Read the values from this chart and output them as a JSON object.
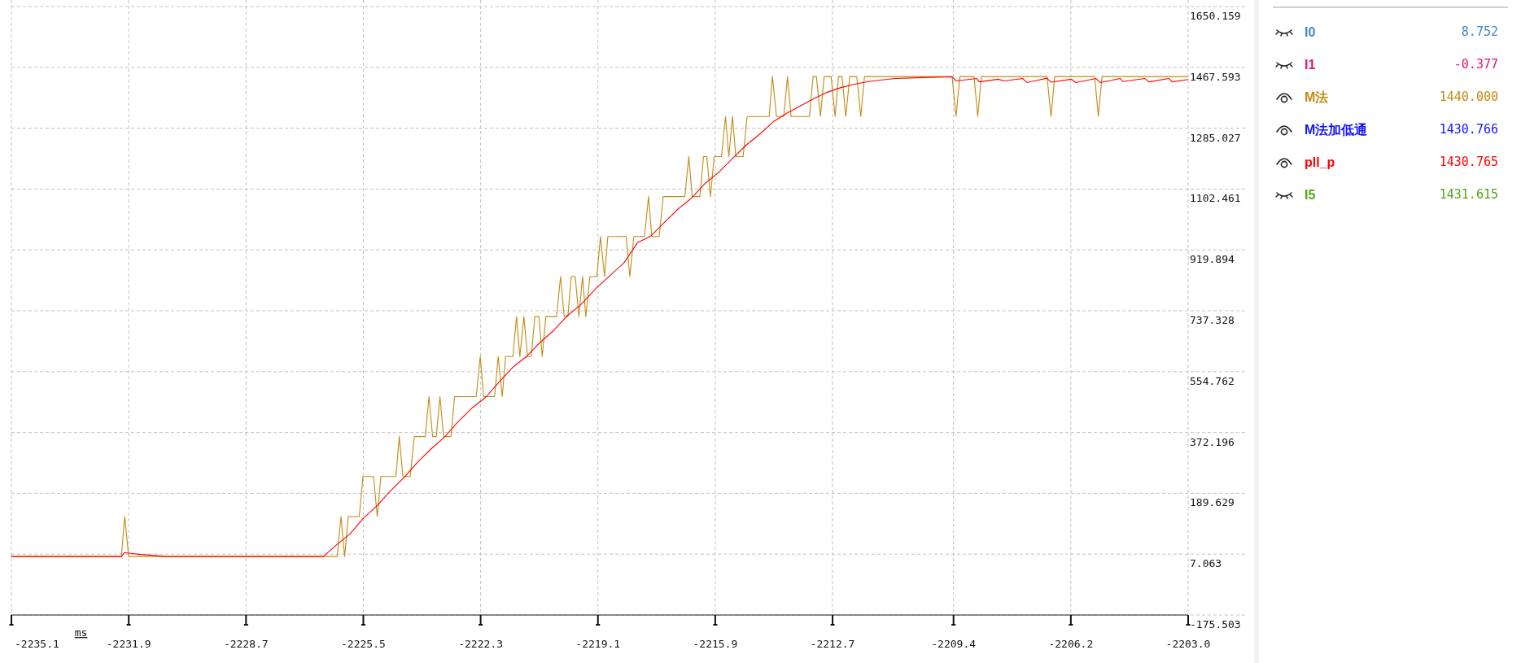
{
  "chart_data": [
    {
      "type": "line",
      "xlabel": "ms",
      "xlim": [
        -2235.1,
        -2203.0
      ],
      "ylim": [
        -175.503,
        1650.159
      ],
      "xticks": [
        {
          "value": -2235.1,
          "label": "-2235.1"
        },
        {
          "value": -2231.9,
          "label": "-2231.9"
        },
        {
          "value": -2228.7,
          "label": "-2228.7"
        },
        {
          "value": -2225.5,
          "label": "-2225.5"
        },
        {
          "value": -2222.3,
          "label": "-2222.3"
        },
        {
          "value": -2219.1,
          "label": "-2219.1"
        },
        {
          "value": -2215.9,
          "label": "-2215.9"
        },
        {
          "value": -2212.7,
          "label": "-2212.7"
        },
        {
          "value": -2209.4,
          "label": "-2209.4"
        },
        {
          "value": -2206.2,
          "label": "-2206.2"
        },
        {
          "value": -2203.0,
          "label": "-2203.0"
        }
      ],
      "yticks": [
        1650.159,
        1467.593,
        1285.027,
        1102.461,
        919.894,
        737.328,
        554.762,
        372.196,
        189.629,
        7.063,
        -175.503
      ],
      "grid": true,
      "series": [
        {
          "color": "#c48a10",
          "x": [
            -2235.1,
            -2232.1,
            -2232.01,
            -2231.9,
            -2226.21,
            -2226.11,
            -2226.01,
            -2225.91,
            -2225.61,
            -2225.51,
            -2225.22,
            -2225.12,
            -2225.02,
            -2224.61,
            -2224.52,
            -2224.42,
            -2224.22,
            -2224.11,
            -2223.81,
            -2223.71,
            -2223.61,
            -2223.51,
            -2223.41,
            -2223.31,
            -2223.11,
            -2223.01,
            -2222.42,
            -2222.31,
            -2222.22,
            -2221.92,
            -2221.82,
            -2221.71,
            -2221.62,
            -2221.42,
            -2221.32,
            -2221.23,
            -2221.12,
            -2221.02,
            -2220.92,
            -2220.82,
            -2220.71,
            -2220.62,
            -2220.52,
            -2220.23,
            -2220.12,
            -2220.02,
            -2219.92,
            -2219.83,
            -2219.72,
            -2219.62,
            -2219.52,
            -2219.43,
            -2219.32,
            -2219.13,
            -2219.03,
            -2218.92,
            -2218.83,
            -2218.33,
            -2218.23,
            -2218.12,
            -2217.83,
            -2217.72,
            -2217.63,
            -2217.43,
            -2217.32,
            -2216.73,
            -2216.62,
            -2216.53,
            -2216.32,
            -2216.22,
            -2216.13,
            -2216.03,
            -2215.93,
            -2215.73,
            -2215.62,
            -2215.53,
            -2215.43,
            -2215.34,
            -2215.14,
            -2215.03,
            -2214.43,
            -2214.34,
            -2214.23,
            -2214.03,
            -2213.93,
            -2213.83,
            -2213.33,
            -2213.23,
            -2213.14,
            -2213.03,
            -2212.93,
            -2212.74,
            -2212.63,
            -2212.54,
            -2212.44,
            -2212.34,
            -2212.23,
            -2212.04,
            -2211.93,
            -2211.83,
            -2209.44,
            -2209.33,
            -2209.23,
            -2208.84,
            -2208.74,
            -2208.64,
            -2206.85,
            -2206.74,
            -2206.64,
            -2205.55,
            -2205.45,
            -2205.35,
            -2203.0
          ],
          "values": [
            0,
            0,
            120,
            0,
            0,
            120,
            0,
            120,
            120,
            240,
            240,
            120,
            240,
            240,
            360,
            240,
            240,
            360,
            360,
            480,
            360,
            360,
            480,
            360,
            360,
            480,
            480,
            600,
            480,
            480,
            600,
            480,
            600,
            600,
            720,
            600,
            720,
            600,
            600,
            720,
            720,
            600,
            720,
            720,
            840,
            720,
            720,
            840,
            840,
            720,
            840,
            720,
            840,
            840,
            960,
            840,
            960,
            960,
            840,
            960,
            960,
            1080,
            960,
            960,
            1080,
            1080,
            1200,
            1080,
            1080,
            1200,
            1200,
            1080,
            1200,
            1200,
            1320,
            1200,
            1320,
            1200,
            1200,
            1320,
            1320,
            1440,
            1320,
            1320,
            1440,
            1320,
            1320,
            1440,
            1440,
            1320,
            1440,
            1440,
            1320,
            1440,
            1440,
            1320,
            1440,
            1440,
            1320,
            1440,
            1440,
            1320,
            1440,
            1440,
            1320,
            1440,
            1440,
            1320,
            1440,
            1440,
            1320,
            1440,
            1440
          ]
        },
        {
          "color": "#ff0000",
          "x": [
            -2235.1,
            -2232.1,
            -2232.01,
            -2231.9,
            -2231.57,
            -2231.19,
            -2230.88,
            -2226.59,
            -2226.24,
            -2225.87,
            -2225.49,
            -2225.13,
            -2224.76,
            -2224.38,
            -2224.02,
            -2223.65,
            -2223.27,
            -2222.91,
            -2222.54,
            -2222.16,
            -2221.8,
            -2221.43,
            -2221.05,
            -2220.69,
            -2220.32,
            -2219.94,
            -2219.58,
            -2219.13,
            -2218.76,
            -2218.39,
            -2218.02,
            -2217.65,
            -2217.28,
            -2216.91,
            -2216.54,
            -2216.17,
            -2215.8,
            -2215.43,
            -2215.06,
            -2214.69,
            -2214.32,
            -2213.95,
            -2213.58,
            -2213.21,
            -2212.84,
            -2212.47,
            -2212.1,
            -2211.73,
            -2211.36,
            -2210.99,
            -2210.25,
            -2209.44,
            -2209.33,
            -2208.77,
            -2208.7,
            -2208.18,
            -2208.03,
            -2207.51,
            -2207.4,
            -2206.85,
            -2206.74,
            -2206.18,
            -2206.07,
            -2205.51,
            -2205.4,
            -2204.85,
            -2204.78,
            -2204.18,
            -2204.07,
            -2203.52,
            -2203.44,
            -2203.0
          ],
          "values": [
            0,
            0,
            12,
            10,
            6,
            3,
            0,
            0,
            34,
            67,
            116,
            152,
            197,
            238,
            283,
            323,
            360,
            405,
            445,
            478,
            523,
            567,
            600,
            641,
            677,
            722,
            754,
            807,
            844,
            881,
            942,
            962,
            1003,
            1043,
            1076,
            1120,
            1153,
            1194,
            1234,
            1267,
            1304,
            1330,
            1352,
            1374,
            1393,
            1407,
            1417,
            1425,
            1430,
            1434,
            1437,
            1439,
            1427,
            1434,
            1424,
            1432,
            1427,
            1434,
            1422,
            1435,
            1423,
            1432,
            1422,
            1434,
            1422,
            1434,
            1425,
            1434,
            1424,
            1434,
            1424,
            1431
          ]
        }
      ]
    },
    {
      "type": "other",
      "categories": [
        "I0",
        "I1",
        "M法",
        "M法加低通",
        "pll_p",
        "I5"
      ],
      "annotations": [
        "8.752",
        "-0.377",
        "1440.000",
        "1430.766",
        "1430.765",
        "1431.615"
      ],
      "colors": [
        "#3d86c8",
        "#e0156f",
        "#c48a10",
        "#1414ff",
        "#ff0000",
        "#4ea612"
      ]
    }
  ]
}
